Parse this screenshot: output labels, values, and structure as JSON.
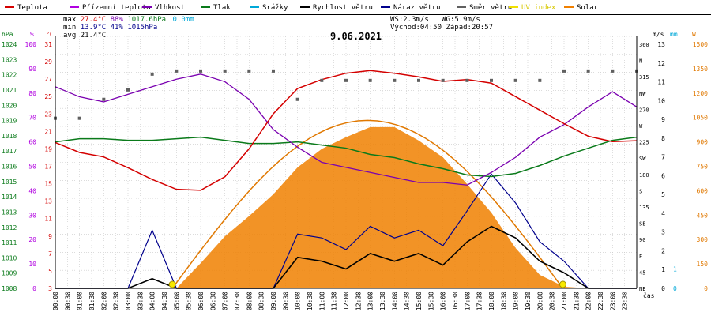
{
  "title": "9.06.2021",
  "legend": [
    {
      "label": "Teplota",
      "color": "#d40000"
    },
    {
      "label": "Přízemní teplota",
      "color": "#b000e0"
    },
    {
      "label": "Vlhkost",
      "color": "#7a00b0"
    },
    {
      "label": "Tlak",
      "color": "#0a7a1a"
    },
    {
      "label": "Srážky",
      "color": "#00a8d8"
    },
    {
      "label": "Rychlost větru",
      "color": "#000000"
    },
    {
      "label": "Náraz větru",
      "color": "#00008c"
    },
    {
      "label": "Směr větru",
      "color": "#606060"
    },
    {
      "label": "UV index",
      "color": "#f0e000"
    },
    {
      "label": "Solar",
      "color": "#f08000"
    }
  ],
  "stats": {
    "max_label": "max",
    "max_temp": "27.4°C",
    "max_hum": "88%",
    "max_press": "1017.6hPa",
    "rain": "0.0mm",
    "min_label": "min",
    "min_temp": "13.9°C",
    "min_hum": "41%",
    "min_press": "1015hPa",
    "avg_label": "avg",
    "avg_temp": "21.4°C",
    "ws": "WS:2.3m/s",
    "wg": "WG:5.9m/s",
    "sunrise": "Východ:04:50",
    "sunset": "Západ:20:57"
  },
  "axes": {
    "hpa_unit": "hPa",
    "pct_unit": "%",
    "c_unit": "°C",
    "ms_unit": "m/s",
    "mm_unit": "mm",
    "w_unit": "W",
    "hpa_ticks": [
      "1024",
      "1023",
      "1022",
      "1021",
      "1020",
      "1019",
      "1018",
      "1017",
      "1016",
      "1015",
      "1014",
      "1013",
      "1012",
      "1011",
      "1010",
      "1009",
      "1008"
    ],
    "pct_ticks": [
      "100",
      "90",
      "80",
      "70",
      "60",
      "50",
      "40",
      "30",
      "20",
      "10",
      "0"
    ],
    "c_ticks": [
      "31",
      "29",
      "27",
      "25",
      "23",
      "21",
      "19",
      "17",
      "15",
      "13",
      "11",
      "9",
      "7",
      "5",
      "3"
    ],
    "dir_ticks": [
      "360",
      "N",
      "315",
      "NW",
      "270",
      "W",
      "225",
      "SW",
      "180",
      "S",
      "135",
      "SE",
      "90",
      "E",
      "45",
      "NE"
    ],
    "ms_ticks": [
      "13",
      "12",
      "11",
      "10",
      "9",
      "8",
      "7",
      "6",
      "5",
      "4",
      "3",
      "2",
      "1",
      "0"
    ],
    "mm_ticks": [
      "1",
      "0"
    ],
    "w_ticks": [
      "1500",
      "1350",
      "1200",
      "1050",
      "900",
      "750",
      "600",
      "450",
      "300",
      "150",
      "0"
    ],
    "x_label": "čas",
    "x_ticks": [
      "00:00",
      "00:30",
      "01:00",
      "01:30",
      "02:00",
      "02:30",
      "03:00",
      "03:30",
      "04:00",
      "04:30",
      "05:00",
      "05:30",
      "06:00",
      "06:30",
      "07:00",
      "07:30",
      "08:00",
      "08:30",
      "09:00",
      "09:30",
      "10:00",
      "10:30",
      "11:00",
      "11:30",
      "12:00",
      "12:30",
      "13:00",
      "13:30",
      "14:00",
      "14:30",
      "15:00",
      "15:30",
      "16:00",
      "16:30",
      "17:00",
      "17:30",
      "18:00",
      "18:30",
      "19:00",
      "19:30",
      "20:00",
      "20:30",
      "21:00",
      "21:30",
      "22:00",
      "22:30",
      "23:00",
      "23:30"
    ]
  },
  "chart_data": {
    "type": "line",
    "title": "9.06.2021",
    "x_hours": [
      0,
      1,
      2,
      3,
      4,
      5,
      6,
      7,
      8,
      9,
      10,
      11,
      12,
      13,
      14,
      15,
      16,
      17,
      18,
      19,
      20,
      21,
      22,
      23,
      24
    ],
    "series": [
      {
        "name": "Teplota",
        "unit": "°C",
        "values": [
          19.2,
          18.1,
          17.6,
          16.4,
          15.1,
          14.0,
          13.9,
          15.4,
          18.5,
          22.4,
          25.2,
          26.2,
          26.9,
          27.2,
          26.9,
          26.5,
          26.0,
          26.2,
          25.8,
          24.3,
          22.8,
          21.3,
          19.9,
          19.3,
          19.4
        ]
      },
      {
        "name": "Vlhkost",
        "unit": "%",
        "values": [
          80,
          76,
          74,
          77,
          80,
          83,
          85,
          82,
          75,
          63,
          56,
          50,
          48,
          46,
          44,
          42,
          42,
          41,
          46,
          52,
          60,
          65,
          72,
          78,
          72
        ]
      },
      {
        "name": "Tlak",
        "unit": "hPa",
        "values": [
          1017.3,
          1017.5,
          1017.5,
          1017.4,
          1017.4,
          1017.5,
          1017.6,
          1017.4,
          1017.2,
          1017.2,
          1017.3,
          1017.1,
          1016.9,
          1016.5,
          1016.3,
          1015.9,
          1015.6,
          1015.2,
          1015.1,
          1015.3,
          1015.8,
          1016.4,
          1016.9,
          1017.4,
          1017.6
        ]
      },
      {
        "name": "Rychlost větru",
        "unit": "m/s",
        "values": [
          0,
          0,
          0,
          0,
          0.5,
          0,
          0,
          0,
          0,
          0,
          1.6,
          1.4,
          1.0,
          1.8,
          1.4,
          1.8,
          1.2,
          2.4,
          3.2,
          2.6,
          1.4,
          0.8,
          0,
          0,
          0
        ]
      },
      {
        "name": "Náraz větru",
        "unit": "m/s",
        "values": [
          0,
          0,
          0,
          0,
          3.0,
          0,
          0,
          0,
          0,
          0,
          2.8,
          2.6,
          2.0,
          3.2,
          2.6,
          3.0,
          2.2,
          4.0,
          5.9,
          4.4,
          2.4,
          1.4,
          0,
          0,
          0
        ]
      },
      {
        "name": "Solar",
        "unit": "W",
        "values": [
          0,
          0,
          0,
          0,
          0,
          0,
          150,
          310,
          430,
          560,
          720,
          830,
          900,
          960,
          960,
          880,
          780,
          620,
          450,
          240,
          80,
          10,
          0,
          0,
          0
        ]
      },
      {
        "name": "Směr větru",
        "unit": "°",
        "values": [
          270,
          270,
          300,
          315,
          340,
          345,
          345,
          345,
          345,
          345,
          300,
          330,
          330,
          330,
          330,
          330,
          330,
          330,
          330,
          330,
          330,
          345,
          345,
          345,
          345
        ]
      }
    ],
    "ranges": {
      "temp": [
        3,
        31
      ],
      "humidity": [
        0,
        100
      ],
      "pressure": [
        1008,
        1024
      ],
      "wind": [
        0,
        13
      ],
      "solar": [
        0,
        1500
      ],
      "direction": [
        0,
        360
      ]
    },
    "sunrise_hour": 4.83,
    "sunset_hour": 20.95
  }
}
